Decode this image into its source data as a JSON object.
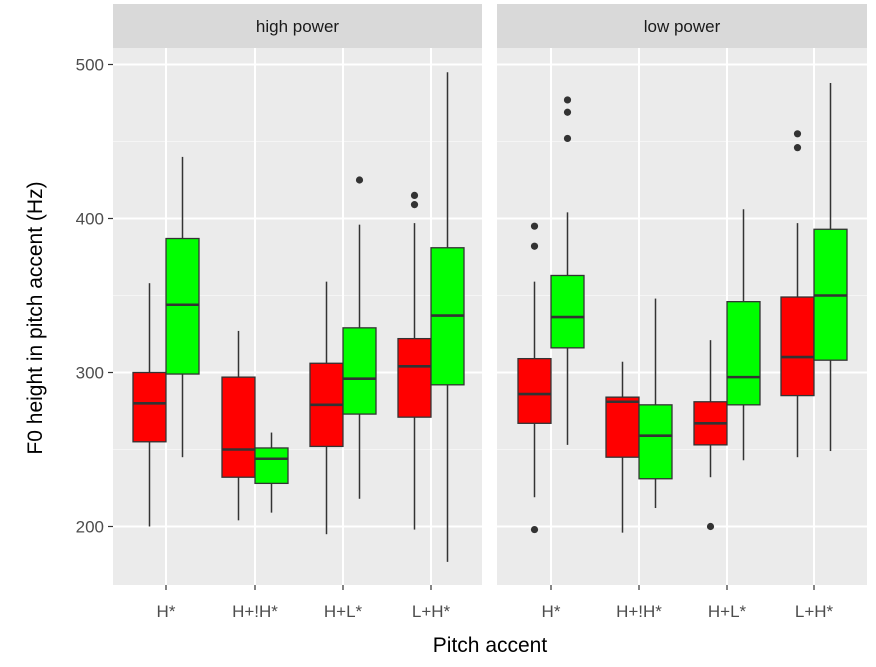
{
  "chart_data": {
    "type": "boxplot",
    "title": "",
    "xlabel": "Pitch accent",
    "ylabel": "F0 height in pitch accent (Hz)",
    "ylim": [
      165,
      512
    ],
    "y_ticks": [
      200,
      300,
      400,
      500
    ],
    "y_minor_gridlines": [
      250,
      350,
      450
    ],
    "grid": true,
    "legend": "none",
    "categories": [
      "H*",
      "H+!H*",
      "H+L*",
      "L+H*"
    ],
    "facets": [
      "high power",
      "low power"
    ],
    "group_colors": {
      "red": "#FF0000",
      "green": "#00FF00"
    },
    "outline_color": "#333333",
    "panels": [
      {
        "facet": "high power",
        "boxes": [
          {
            "category": "H*",
            "group": "red",
            "whisker_low": 200,
            "q1": 255,
            "median": 280,
            "q3": 300,
            "whisker_high": 358,
            "outliers": []
          },
          {
            "category": "H*",
            "group": "green",
            "whisker_low": 245,
            "q1": 299,
            "median": 344,
            "q3": 387,
            "whisker_high": 440,
            "outliers": []
          },
          {
            "category": "H+!H*",
            "group": "red",
            "whisker_low": 204,
            "q1": 232,
            "median": 250,
            "q3": 297,
            "whisker_high": 327,
            "outliers": []
          },
          {
            "category": "H+!H*",
            "group": "green",
            "whisker_low": 209,
            "q1": 228,
            "median": 244,
            "q3": 251,
            "whisker_high": 261,
            "outliers": []
          },
          {
            "category": "H+L*",
            "group": "red",
            "whisker_low": 195,
            "q1": 252,
            "median": 279,
            "q3": 306,
            "whisker_high": 359,
            "outliers": []
          },
          {
            "category": "H+L*",
            "group": "green",
            "whisker_low": 218,
            "q1": 273,
            "median": 296,
            "q3": 329,
            "whisker_high": 396,
            "outliers": [
              425
            ]
          },
          {
            "category": "L+H*",
            "group": "red",
            "whisker_low": 198,
            "q1": 271,
            "median": 304,
            "q3": 322,
            "whisker_high": 397,
            "outliers": [
              409,
              415
            ]
          },
          {
            "category": "L+H*",
            "group": "green",
            "whisker_low": 177,
            "q1": 292,
            "median": 337,
            "q3": 381,
            "whisker_high": 495,
            "outliers": []
          }
        ]
      },
      {
        "facet": "low power",
        "boxes": [
          {
            "category": "H*",
            "group": "red",
            "whisker_low": 219,
            "q1": 267,
            "median": 286,
            "q3": 309,
            "whisker_high": 359,
            "outliers": [
              198,
              382,
              395
            ]
          },
          {
            "category": "H*",
            "group": "green",
            "whisker_low": 253,
            "q1": 316,
            "median": 336,
            "q3": 363,
            "whisker_high": 404,
            "outliers": [
              452,
              469,
              477
            ]
          },
          {
            "category": "H+!H*",
            "group": "red",
            "whisker_low": 196,
            "q1": 245,
            "median": 281,
            "q3": 284,
            "whisker_high": 307,
            "outliers": []
          },
          {
            "category": "H+!H*",
            "group": "green",
            "whisker_low": 212,
            "q1": 231,
            "median": 259,
            "q3": 279,
            "whisker_high": 348,
            "outliers": []
          },
          {
            "category": "H+L*",
            "group": "red",
            "whisker_low": 232,
            "q1": 253,
            "median": 267,
            "q3": 281,
            "whisker_high": 321,
            "outliers": [
              200
            ]
          },
          {
            "category": "H+L*",
            "group": "green",
            "whisker_low": 243,
            "q1": 279,
            "median": 297,
            "q3": 346,
            "whisker_high": 406,
            "outliers": []
          },
          {
            "category": "L+H*",
            "group": "red",
            "whisker_low": 245,
            "q1": 285,
            "median": 310,
            "q3": 349,
            "whisker_high": 397,
            "outliers": [
              446,
              455
            ]
          },
          {
            "category": "L+H*",
            "group": "green",
            "whisker_low": 249,
            "q1": 308,
            "median": 350,
            "q3": 393,
            "whisker_high": 488,
            "outliers": []
          }
        ]
      }
    ]
  },
  "layout": {
    "panel_bg": "#EBEBEB",
    "strip_bg": "#D9D9D9",
    "grid_major": "#FFFFFF",
    "grid_minor": "#F5F5F5"
  }
}
